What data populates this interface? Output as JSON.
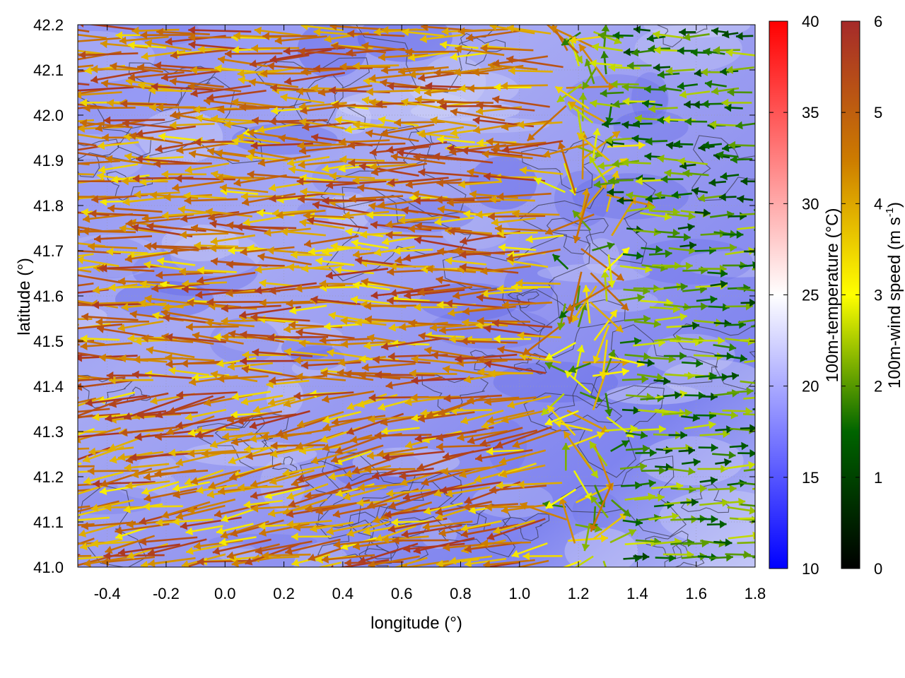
{
  "chart_data": {
    "type": "vector-field",
    "xlabel": "longitude (°)",
    "ylabel": "latitude (°)",
    "xlim": [
      -0.5,
      1.8
    ],
    "ylim": [
      41.0,
      42.2
    ],
    "x_ticks": [
      -0.4,
      -0.2,
      0.0,
      0.2,
      0.4,
      0.6,
      0.8,
      1.0,
      1.2,
      1.4,
      1.6,
      1.8
    ],
    "x_tick_labels": [
      "-0.4",
      "-0.2",
      "0.0",
      "0.2",
      "0.4",
      "0.6",
      "0.8",
      "1.0",
      "1.2",
      "1.4",
      "1.6",
      "1.8"
    ],
    "y_ticks": [
      41.0,
      41.1,
      41.2,
      41.3,
      41.4,
      41.5,
      41.6,
      41.7,
      41.8,
      41.9,
      42.0,
      42.1,
      42.2
    ],
    "y_tick_labels": [
      "41.0",
      "41.1",
      "41.2",
      "41.3",
      "41.4",
      "41.5",
      "41.6",
      "41.7",
      "41.8",
      "41.9",
      "42.0",
      "42.1",
      "42.2"
    ],
    "grid": true,
    "temperature_colorbar": {
      "label": "100m-temperature (°C)",
      "range": [
        10,
        40
      ],
      "ticks": [
        10,
        15,
        20,
        25,
        30,
        35,
        40
      ],
      "tick_labels": [
        "10",
        "15",
        "20",
        "25",
        "30",
        "35",
        "40"
      ],
      "colors": [
        "#0000ff",
        "#ffffff",
        "#ff0000"
      ]
    },
    "wind_colorbar": {
      "label_prefix": "100m-wind speed (m s",
      "label_exponent": "-1",
      "label_suffix": ")",
      "range": [
        0,
        6
      ],
      "ticks": [
        0,
        1,
        2,
        3,
        4,
        5,
        6
      ],
      "tick_labels": [
        "0",
        "1",
        "2",
        "3",
        "4",
        "5",
        "6"
      ],
      "colors": [
        "#000000",
        "#006400",
        "#ffff00",
        "#cc7a00",
        "#a52a2a"
      ]
    },
    "field_summary": {
      "temperature_typical_c": 17,
      "west_region_wind_m_s": 5.8,
      "west_region_direction": "from east (arrows point west)",
      "east_region_wind_m_s": 2.5,
      "east_region_direction": "from west (arrows point east)",
      "convergence_longitude": 1.25
    }
  }
}
